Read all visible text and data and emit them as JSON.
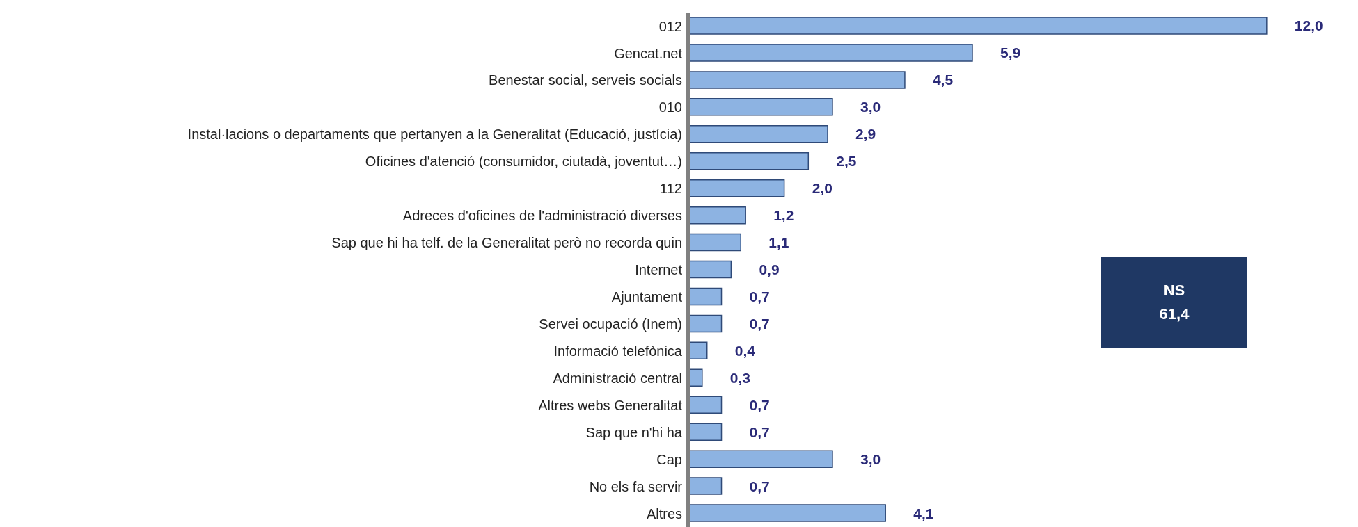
{
  "chart_data": {
    "type": "bar",
    "orientation": "horizontal",
    "categories": [
      "012",
      "Gencat.net",
      "Benestar social, serveis socials",
      "010",
      "Instal·lacions o departaments que pertanyen a la Generalitat (Educació, justícia)",
      "Oficines d'atenció (consumidor, ciutadà, joventut…)",
      "112",
      "Adreces d'oficines de l'administració diverses",
      "Sap que hi ha telf. de la Generalitat però no recorda quin",
      "Internet",
      "Ajuntament",
      "Servei ocupació (Inem)",
      "Informació telefònica",
      "Administració central",
      "Altres webs Generalitat",
      "Sap que n'hi ha",
      "Cap",
      "No els fa servir",
      "Altres"
    ],
    "values": [
      12.0,
      5.9,
      4.5,
      3.0,
      2.9,
      2.5,
      2.0,
      1.2,
      1.1,
      0.9,
      0.7,
      0.7,
      0.4,
      0.3,
      0.7,
      0.7,
      3.0,
      0.7,
      4.1
    ],
    "value_labels": [
      "12,0",
      "5,9",
      "4,5",
      "3,0",
      "2,9",
      "2,5",
      "2,0",
      "1,2",
      "1,1",
      "0,9",
      "0,7",
      "0,7",
      "0,4",
      "0,3",
      "0,7",
      "0,7",
      "3,0",
      "0,7",
      "4,1"
    ],
    "color": "#8db3e2",
    "annotations": [
      "NS",
      "61,4"
    ]
  }
}
